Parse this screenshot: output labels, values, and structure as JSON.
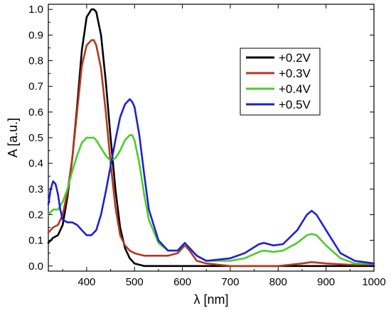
{
  "chart_data": {
    "type": "line",
    "xlabel": "λ [nm]",
    "ylabel": "A [a.u.]",
    "xlim": [
      320,
      1000
    ],
    "ylim": [
      -0.02,
      1.02
    ],
    "xticks": [
      400,
      500,
      600,
      700,
      800,
      900,
      1000
    ],
    "yticks": [
      0.0,
      0.1,
      0.2,
      0.3,
      0.4,
      0.5,
      0.6,
      0.7,
      0.8,
      0.9,
      1.0
    ],
    "xtick_labels": [
      "400",
      "500",
      "600",
      "700",
      "800",
      "900",
      "1000"
    ],
    "ytick_labels": [
      "0.0",
      "0.1",
      "0.2",
      "0.3",
      "0.4",
      "0.5",
      "0.6",
      "0.7",
      "0.8",
      "0.9",
      "1.0"
    ],
    "grid": false,
    "legend_position": "top-right",
    "series": [
      {
        "name": "+0.2V",
        "color": "#000000",
        "x": [
          320,
          330,
          340,
          350,
          360,
          370,
          380,
          390,
          400,
          410,
          415,
          420,
          430,
          440,
          450,
          460,
          470,
          480,
          490,
          500,
          520,
          550,
          600,
          650,
          700,
          800,
          900,
          1000
        ],
        "y": [
          0.09,
          0.11,
          0.12,
          0.16,
          0.27,
          0.42,
          0.62,
          0.84,
          0.97,
          1.0,
          1.0,
          0.99,
          0.9,
          0.72,
          0.5,
          0.3,
          0.15,
          0.07,
          0.03,
          0.01,
          0.0,
          0.0,
          0.0,
          0.0,
          0.0,
          0.0,
          0.0,
          0.0
        ]
      },
      {
        "name": "+0.3V",
        "color": "#b03a1e",
        "x": [
          320,
          330,
          340,
          350,
          360,
          370,
          380,
          390,
          400,
          410,
          415,
          420,
          430,
          440,
          450,
          460,
          470,
          480,
          490,
          500,
          520,
          550,
          570,
          590,
          600,
          605,
          615,
          630,
          650,
          700,
          750,
          800,
          850,
          870,
          900,
          950,
          1000
        ],
        "y": [
          0.13,
          0.15,
          0.16,
          0.2,
          0.29,
          0.42,
          0.6,
          0.78,
          0.86,
          0.88,
          0.88,
          0.86,
          0.77,
          0.6,
          0.4,
          0.23,
          0.12,
          0.08,
          0.06,
          0.05,
          0.04,
          0.04,
          0.04,
          0.05,
          0.07,
          0.08,
          0.06,
          0.02,
          0.01,
          0.0,
          0.0,
          0.0,
          0.01,
          0.015,
          0.01,
          0.005,
          0.005
        ]
      },
      {
        "name": "+0.4V",
        "color": "#4ccc2c",
        "x": [
          320,
          330,
          340,
          350,
          360,
          370,
          380,
          390,
          400,
          410,
          415,
          420,
          430,
          440,
          450,
          460,
          470,
          480,
          490,
          495,
          500,
          510,
          520,
          530,
          550,
          570,
          590,
          600,
          605,
          615,
          630,
          650,
          700,
          730,
          760,
          770,
          790,
          810,
          840,
          860,
          870,
          880,
          900,
          930,
          960,
          1000
        ],
        "y": [
          0.2,
          0.22,
          0.22,
          0.25,
          0.3,
          0.37,
          0.43,
          0.48,
          0.5,
          0.5,
          0.5,
          0.49,
          0.46,
          0.43,
          0.41,
          0.42,
          0.45,
          0.49,
          0.51,
          0.51,
          0.49,
          0.4,
          0.28,
          0.18,
          0.09,
          0.06,
          0.06,
          0.08,
          0.085,
          0.07,
          0.04,
          0.02,
          0.02,
          0.03,
          0.055,
          0.06,
          0.055,
          0.06,
          0.09,
          0.12,
          0.125,
          0.12,
          0.08,
          0.03,
          0.01,
          0.01
        ]
      },
      {
        "name": "+0.5V",
        "color": "#1f1fd6",
        "x": [
          320,
          325,
          330,
          335,
          340,
          345,
          350,
          360,
          370,
          380,
          390,
          400,
          410,
          420,
          430,
          440,
          450,
          460,
          470,
          480,
          490,
          495,
          500,
          510,
          520,
          530,
          550,
          570,
          590,
          600,
          605,
          615,
          630,
          650,
          700,
          730,
          760,
          770,
          790,
          810,
          840,
          860,
          870,
          880,
          900,
          930,
          960,
          1000
        ],
        "y": [
          0.24,
          0.3,
          0.33,
          0.32,
          0.28,
          0.22,
          0.18,
          0.17,
          0.17,
          0.16,
          0.14,
          0.12,
          0.12,
          0.14,
          0.2,
          0.29,
          0.39,
          0.49,
          0.58,
          0.63,
          0.65,
          0.64,
          0.62,
          0.51,
          0.36,
          0.22,
          0.1,
          0.06,
          0.06,
          0.08,
          0.09,
          0.07,
          0.04,
          0.02,
          0.03,
          0.05,
          0.085,
          0.09,
          0.08,
          0.085,
          0.14,
          0.2,
          0.215,
          0.2,
          0.14,
          0.05,
          0.02,
          0.01
        ]
      }
    ]
  }
}
